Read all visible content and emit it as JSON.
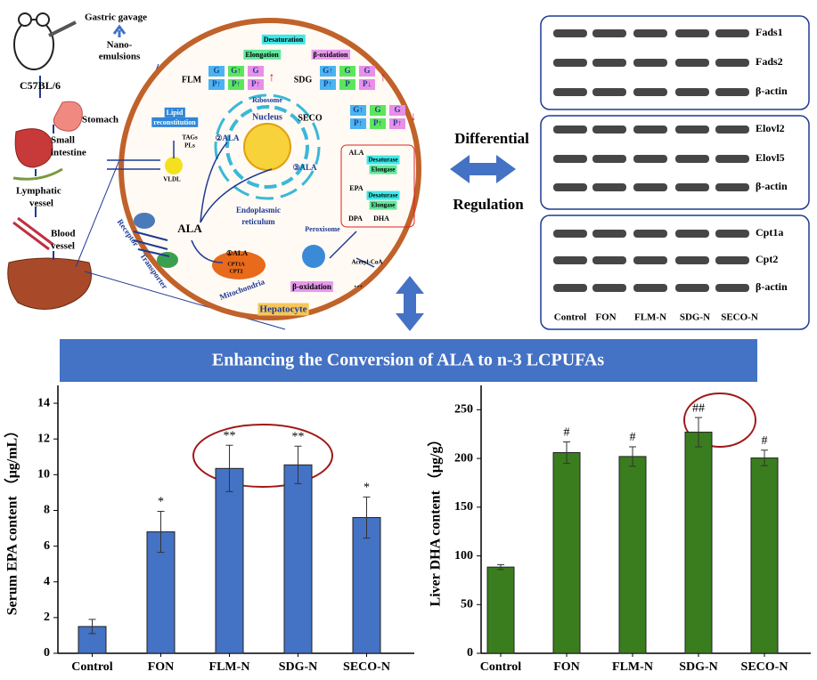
{
  "chart_data": [
    {
      "type": "bar",
      "ylabel": "Serum EPA content （μg/mL）",
      "categories": [
        "Control",
        "FON",
        "FLM-N",
        "SDG-N",
        "SECO-N"
      ],
      "values": [
        1.5,
        6.8,
        10.35,
        10.55,
        7.6
      ],
      "errors": [
        0.4,
        1.15,
        1.3,
        1.05,
        1.15
      ],
      "annotations": [
        null,
        "*",
        "**",
        "**",
        "*"
      ],
      "color": "#4472c4",
      "ylim": [
        0,
        15
      ],
      "yticks": [
        0,
        2,
        4,
        6,
        8,
        10,
        12,
        14
      ]
    },
    {
      "type": "bar",
      "ylabel": "Liver DHA content （μg/g）",
      "categories": [
        "Control",
        "FON",
        "FLM-N",
        "SDG-N",
        "SECO-N"
      ],
      "values": [
        88.5,
        206,
        202,
        227,
        200.5
      ],
      "errors": [
        2.5,
        11,
        10,
        15,
        8
      ],
      "annotations": [
        null,
        "#",
        "#",
        "##",
        "#"
      ],
      "color": "#3a7d1e",
      "ylim": [
        0,
        275
      ],
      "yticks": [
        0,
        50,
        100,
        150,
        200,
        250
      ]
    }
  ],
  "banner": "Enhancing the Conversion of ALA to n-3 LCPUFAs",
  "diagram": {
    "labels": [
      "Gastric gavage",
      "Nano-",
      "emulsions",
      "C57BL/6",
      "Stomach",
      "Small",
      "intestine",
      "Lymphatic",
      "vessel",
      "Blood",
      "vessel",
      "Desaturation",
      "Elongation",
      "β-oxidation",
      "FLM",
      "SDG",
      "SECO",
      "Ribosome",
      "Nucleus",
      "Lipid",
      "reconstitution",
      "TAGs",
      "PLs",
      "VLDL",
      "②ALA",
      "③ALA",
      "Endoplasmic",
      "reticulum",
      "ALA",
      "Receptor",
      "Transporter",
      "①ALA",
      "CPT1A",
      "CPT2",
      "Mitochondria",
      "Peroxisome",
      "Acetyl-CoA",
      "β-oxidation",
      "…",
      "Hepatocyte",
      "ALA",
      "Desaturase",
      "Elongase",
      "EPA",
      "Desaturase",
      "Elongase",
      "DPA",
      "DHA",
      "Differential",
      "Regulation"
    ],
    "gp": [
      {
        "cells": [
          "G",
          "G↑",
          "G",
          "P↑",
          "P↑",
          "P↑"
        ],
        "trend": "↑"
      },
      {
        "cells": [
          "G↑",
          "G",
          "G",
          "P↑",
          "P",
          "P↓"
        ],
        "trend": "↑"
      },
      {
        "cells": [
          "G↑",
          "G",
          "G",
          "P↑",
          "P↑",
          "P↑"
        ],
        "trend": "↓"
      }
    ]
  },
  "blots": {
    "panels": [
      [
        "Fads1",
        "Fads2",
        "β-actin"
      ],
      [
        "Elovl2",
        "Elovl5",
        "β-actin"
      ],
      [
        "Cpt1a",
        "Cpt2",
        "β-actin"
      ]
    ],
    "lanes": [
      "Control",
      "FON",
      "FLM-N",
      "SDG-N",
      "SECO-N"
    ]
  }
}
